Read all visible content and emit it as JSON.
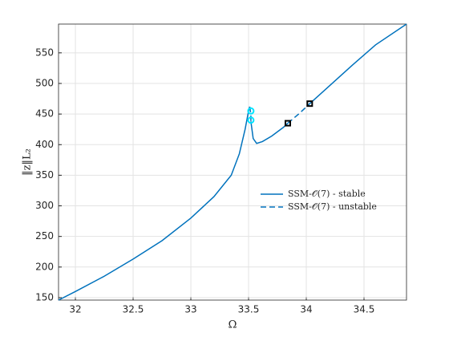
{
  "chart_data": {
    "type": "line",
    "xlabel": "Ω",
    "ylabel": "‖z‖L₂",
    "xlim": [
      31.854,
      34.868
    ],
    "ylim": [
      146,
      597
    ],
    "xticks": [
      32,
      32.5,
      33,
      33.5,
      34,
      34.5
    ],
    "yticks": [
      150,
      200,
      250,
      300,
      350,
      400,
      450,
      500,
      550
    ],
    "grid": true,
    "legend_position": "east",
    "series": [
      {
        "name": "SSM-𝒪(7) - stable",
        "color": "#0072bd",
        "style": "solid",
        "x": [
          31.854,
          32.0,
          32.25,
          32.5,
          32.75,
          33.0,
          33.2,
          33.35,
          33.42,
          33.47,
          33.5,
          33.51,
          null,
          33.52,
          33.54,
          33.57,
          33.62,
          33.7,
          33.8,
          33.84,
          null,
          34.03,
          34.2,
          34.4,
          34.6,
          34.868
        ],
        "values": [
          146,
          160,
          185,
          213,
          243,
          280,
          315,
          350,
          385,
          425,
          455,
          462,
          null,
          438,
          410,
          402,
          405,
          414,
          428,
          435,
          null,
          467,
          496,
          530,
          563,
          597
        ]
      },
      {
        "name": "SSM-𝒪(7) - unstable",
        "color": "#0072bd",
        "style": "dashed",
        "x": [
          33.51,
          33.52,
          33.52,
          null,
          33.84,
          33.94,
          34.03
        ],
        "values": [
          462,
          450,
          438,
          null,
          435,
          451,
          467
        ]
      },
      {
        "color": "#00e5ff",
        "marker": "circle",
        "x": [
          33.52,
          33.52
        ],
        "values": [
          455,
          440
        ]
      },
      {
        "color": "#000000",
        "marker": "square",
        "x": [
          33.84,
          34.03
        ],
        "values": [
          435,
          467
        ]
      }
    ]
  }
}
